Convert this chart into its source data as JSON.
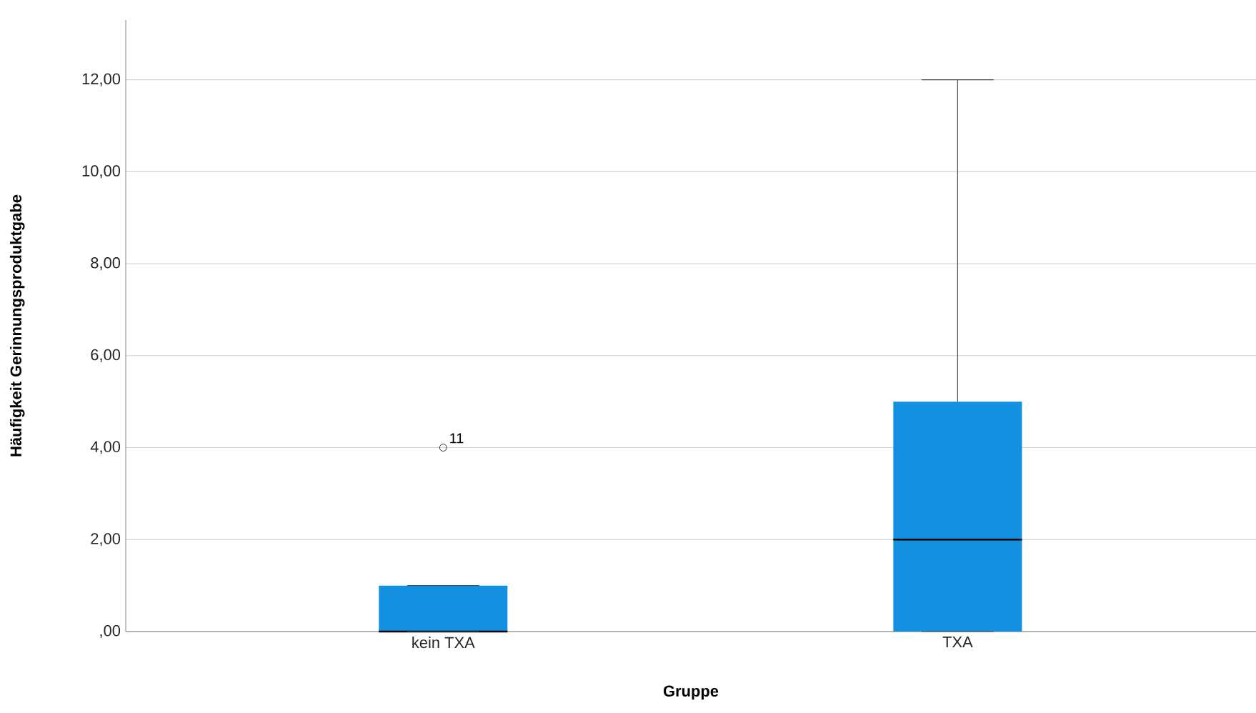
{
  "chart_data": {
    "type": "box",
    "xlabel": "Gruppe",
    "ylabel": "Häufigkeit Gerinnungsproduktgabe",
    "categories": [
      "kein TXA",
      "TXA"
    ],
    "boxes": [
      {
        "low": 0,
        "q1": 0,
        "median": 0,
        "q3": 1,
        "high": 1,
        "outliers": [
          4
        ]
      },
      {
        "low": 0,
        "q1": 0,
        "median": 2,
        "q3": 5,
        "high": 12
      }
    ],
    "color": "#1490e0",
    "ylim": [
      0,
      13.3
    ],
    "yticks": [
      {
        "value": 0,
        "label": ",00"
      },
      {
        "value": 2,
        "label": "2,00"
      },
      {
        "value": 4,
        "label": "4,00"
      },
      {
        "value": 6,
        "label": "6,00"
      },
      {
        "value": 8,
        "label": "8,00"
      },
      {
        "value": 10,
        "label": "10,00"
      },
      {
        "value": 12,
        "label": "12,00"
      }
    ],
    "grid": "y",
    "annotations": [
      "11"
    ]
  }
}
